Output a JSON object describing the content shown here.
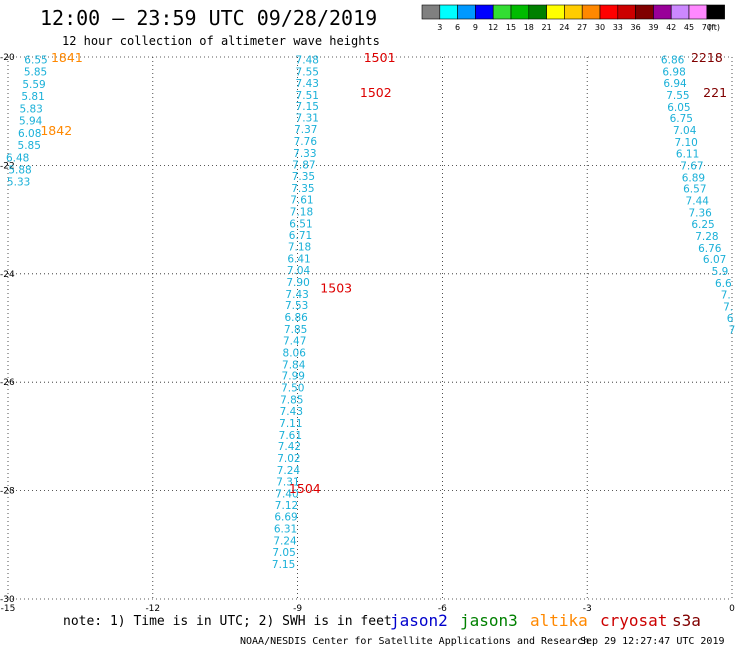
{
  "header": {
    "title": "12:00 – 23:59 UTC 09/28/2019",
    "subtitle": "12 hour collection of altimeter wave heights"
  },
  "legend": {
    "unit_label": "(ft)",
    "bins": [
      {
        "label": "3",
        "color": "#808080"
      },
      {
        "label": "6",
        "color": "#00ffff"
      },
      {
        "label": "9",
        "color": "#0099ff"
      },
      {
        "label": "12",
        "color": "#0000ff"
      },
      {
        "label": "15",
        "color": "#33dd33"
      },
      {
        "label": "18",
        "color": "#00bb00"
      },
      {
        "label": "21",
        "color": "#008000"
      },
      {
        "label": "24",
        "color": "#ffff00"
      },
      {
        "label": "27",
        "color": "#ffcc00"
      },
      {
        "label": "30",
        "color": "#ff8800"
      },
      {
        "label": "33",
        "color": "#ff0000"
      },
      {
        "label": "36",
        "color": "#cc0000"
      },
      {
        "label": "39",
        "color": "#800000"
      },
      {
        "label": "42",
        "color": "#990099"
      },
      {
        "label": "45",
        "color": "#cc88ff"
      },
      {
        "label": "70",
        "color": "#ff88ff"
      },
      {
        "label": "",
        "color": "#000000"
      }
    ]
  },
  "chart_data": {
    "type": "scatter",
    "xlim": [
      -15,
      0
    ],
    "ylim": [
      -30,
      -20
    ],
    "x_ticks": [
      "-15",
      "-12",
      "-9",
      "-6",
      "-3",
      "0"
    ],
    "y_ticks": [
      "-20",
      "-22",
      "-24",
      "-26",
      "-28",
      "-30"
    ],
    "grid": true,
    "value_color": "#1ab0d8",
    "tracks": [
      {
        "points": [
          {
            "x": -14.42,
            "y": -20.05,
            "v": "6.55"
          },
          {
            "x": -14.43,
            "y": -20.27,
            "v": "5.85"
          },
          {
            "x": -14.46,
            "y": -20.5,
            "v": "5.59"
          },
          {
            "x": -14.48,
            "y": -20.72,
            "v": "5.81"
          },
          {
            "x": -14.52,
            "y": -20.95,
            "v": "5.83"
          },
          {
            "x": -14.53,
            "y": -21.17,
            "v": "5.94"
          },
          {
            "x": -14.55,
            "y": -21.4,
            "v": "6.08"
          },
          {
            "x": -14.56,
            "y": -21.62,
            "v": "5.85"
          },
          {
            "x": -14.8,
            "y": -21.85,
            "v": "6.48"
          },
          {
            "x": -14.75,
            "y": -22.08,
            "v": "5.88"
          },
          {
            "x": -14.78,
            "y": -22.3,
            "v": "5.33"
          }
        ],
        "times": [
          {
            "x": -13.78,
            "y": -20.0,
            "label": "1841",
            "color": "#ff8800"
          },
          {
            "x": -14.0,
            "y": -21.35,
            "label": "1842",
            "color": "#ff8800"
          }
        ]
      },
      {
        "points": [
          {
            "x": -8.8,
            "y": -20.05,
            "v": "7.48"
          },
          {
            "x": -8.8,
            "y": -20.27,
            "v": "7.55"
          },
          {
            "x": -8.8,
            "y": -20.48,
            "v": "7.43"
          },
          {
            "x": -8.8,
            "y": -20.7,
            "v": "7.51"
          },
          {
            "x": -8.8,
            "y": -20.9,
            "v": "7.15"
          },
          {
            "x": -8.8,
            "y": -21.12,
            "v": "7.31"
          },
          {
            "x": -8.83,
            "y": -21.33,
            "v": "7.37"
          },
          {
            "x": -8.84,
            "y": -21.55,
            "v": "7.76"
          },
          {
            "x": -8.85,
            "y": -21.77,
            "v": "7.33"
          },
          {
            "x": -8.87,
            "y": -21.98,
            "v": "7.87"
          },
          {
            "x": -8.88,
            "y": -22.2,
            "v": "7.35"
          },
          {
            "x": -8.89,
            "y": -22.42,
            "v": "7.35"
          },
          {
            "x": -8.91,
            "y": -22.63,
            "v": "7.61"
          },
          {
            "x": -8.92,
            "y": -22.85,
            "v": "7.18"
          },
          {
            "x": -8.93,
            "y": -23.07,
            "v": "6.51"
          },
          {
            "x": -8.94,
            "y": -23.28,
            "v": "6.71"
          },
          {
            "x": -8.96,
            "y": -23.5,
            "v": "7.18"
          },
          {
            "x": -8.97,
            "y": -23.72,
            "v": "6.41"
          },
          {
            "x": -8.98,
            "y": -23.93,
            "v": "7.04"
          },
          {
            "x": -8.99,
            "y": -24.15,
            "v": "7.90"
          },
          {
            "x": -9.01,
            "y": -24.37,
            "v": "7.43"
          },
          {
            "x": -9.02,
            "y": -24.58,
            "v": "7.53"
          },
          {
            "x": -9.03,
            "y": -24.8,
            "v": "6.86"
          },
          {
            "x": -9.04,
            "y": -25.02,
            "v": "7.85"
          },
          {
            "x": -9.06,
            "y": -25.23,
            "v": "7.47"
          },
          {
            "x": -9.07,
            "y": -25.45,
            "v": "8.06"
          },
          {
            "x": -9.08,
            "y": -25.67,
            "v": "7.84"
          },
          {
            "x": -9.09,
            "y": -25.88,
            "v": "7.99"
          },
          {
            "x": -9.1,
            "y": -26.1,
            "v": "7.50"
          },
          {
            "x": -9.12,
            "y": -26.32,
            "v": "7.85"
          },
          {
            "x": -9.13,
            "y": -26.53,
            "v": "7.43"
          },
          {
            "x": -9.14,
            "y": -26.75,
            "v": "7.11"
          },
          {
            "x": -9.15,
            "y": -26.97,
            "v": "7.61"
          },
          {
            "x": -9.17,
            "y": -27.18,
            "v": "7.42"
          },
          {
            "x": -9.18,
            "y": -27.4,
            "v": "7.02"
          },
          {
            "x": -9.19,
            "y": -27.62,
            "v": "7.24"
          },
          {
            "x": -9.2,
            "y": -27.83,
            "v": "7.31"
          },
          {
            "x": -9.22,
            "y": -28.05,
            "v": "7.40"
          },
          {
            "x": -9.23,
            "y": -28.27,
            "v": "7.12"
          },
          {
            "x": -9.24,
            "y": -28.48,
            "v": "6.69"
          },
          {
            "x": -9.25,
            "y": -28.7,
            "v": "6.31"
          },
          {
            "x": -9.26,
            "y": -28.92,
            "v": "7.24"
          },
          {
            "x": -9.28,
            "y": -29.13,
            "v": "7.05"
          },
          {
            "x": -9.29,
            "y": -29.35,
            "v": "7.15"
          }
        ],
        "times": [
          {
            "x": -7.3,
            "y": -20.0,
            "label": "1501",
            "color": "#dd0000"
          },
          {
            "x": -7.38,
            "y": -20.65,
            "label": "1502",
            "color": "#dd0000"
          },
          {
            "x": -8.2,
            "y": -24.25,
            "label": "1503",
            "color": "#dd0000"
          },
          {
            "x": -8.85,
            "y": -27.95,
            "label": "1504",
            "color": "#dd0000"
          }
        ]
      },
      {
        "points": [
          {
            "x": -1.23,
            "y": -20.05,
            "v": "6.86"
          },
          {
            "x": -1.2,
            "y": -20.27,
            "v": "6.98"
          },
          {
            "x": -1.18,
            "y": -20.48,
            "v": "6.94"
          },
          {
            "x": -1.12,
            "y": -20.7,
            "v": "7.55"
          },
          {
            "x": -1.1,
            "y": -20.92,
            "v": "6.05"
          },
          {
            "x": -1.05,
            "y": -21.13,
            "v": "6.75"
          },
          {
            "x": -0.98,
            "y": -21.35,
            "v": "7.04"
          },
          {
            "x": -0.95,
            "y": -21.57,
            "v": "7.10"
          },
          {
            "x": -0.92,
            "y": -21.78,
            "v": "6.11"
          },
          {
            "x": -0.83,
            "y": -22.0,
            "v": "7.67"
          },
          {
            "x": -0.8,
            "y": -22.22,
            "v": "6.89"
          },
          {
            "x": -0.77,
            "y": -22.43,
            "v": "6.57"
          },
          {
            "x": -0.72,
            "y": -22.65,
            "v": "7.44"
          },
          {
            "x": -0.66,
            "y": -22.87,
            "v": "7.36"
          },
          {
            "x": -0.6,
            "y": -23.08,
            "v": "6.25"
          },
          {
            "x": -0.52,
            "y": -23.3,
            "v": "7.28"
          },
          {
            "x": -0.46,
            "y": -23.52,
            "v": "6.76"
          },
          {
            "x": -0.36,
            "y": -23.73,
            "v": "6.07"
          },
          {
            "x": -0.25,
            "y": -23.95,
            "v": "5.9"
          },
          {
            "x": -0.18,
            "y": -24.17,
            "v": "6.6"
          },
          {
            "x": -0.13,
            "y": -24.38,
            "v": "7."
          },
          {
            "x": -0.08,
            "y": -24.6,
            "v": "7."
          },
          {
            "x": -0.04,
            "y": -24.82,
            "v": "6"
          },
          {
            "x": 0.0,
            "y": -25.03,
            "v": "7"
          }
        ],
        "times": [
          {
            "x": -0.52,
            "y": -20.0,
            "label": "2218",
            "color": "#800000"
          },
          {
            "x": -0.35,
            "y": -20.65,
            "label": "221",
            "color": "#800000"
          }
        ]
      }
    ]
  },
  "footer": {
    "note": "note: 1) Time is in UTC; 2) SWH is in feet",
    "satellites": [
      {
        "name": "jason2",
        "color": "#0000cc"
      },
      {
        "name": "jason3",
        "color": "#008000"
      },
      {
        "name": "altika",
        "color": "#ff8800"
      },
      {
        "name": "cryosat",
        "color": "#cc0000"
      },
      {
        "name": "s3a",
        "color": "#800000"
      }
    ],
    "credit": "NOAA/NESDIS Center for Satellite Applications and Research",
    "timestamp": "Sep 29 12:27:47 UTC 2019"
  }
}
